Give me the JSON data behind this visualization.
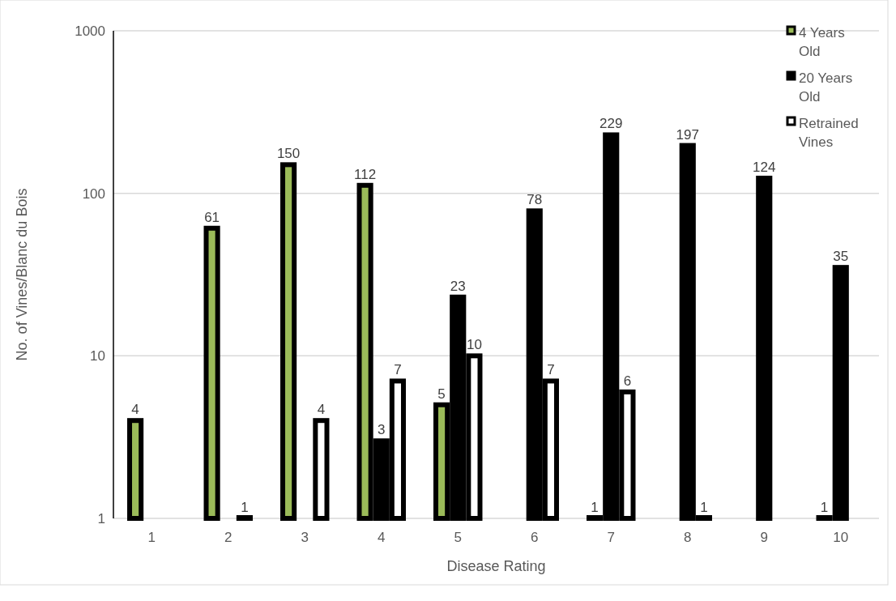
{
  "chart_data": {
    "type": "bar",
    "xlabel": "Disease Rating",
    "ylabel": "No. of Vines/Blanc du Bois",
    "categories": [
      "1",
      "2",
      "3",
      "4",
      "5",
      "6",
      "7",
      "8",
      "9",
      "10"
    ],
    "series": [
      {
        "name": "4 Years Old",
        "color": "#9bbb59",
        "values": [
          4,
          61,
          150,
          112,
          5,
          null,
          1,
          null,
          null,
          1
        ]
      },
      {
        "name": "20 Years Old",
        "color": "#000000",
        "values": [
          null,
          null,
          null,
          3,
          23,
          78,
          229,
          197,
          124,
          35
        ]
      },
      {
        "name": "Retrained Vines",
        "color": "#ffffff",
        "values": [
          null,
          1,
          4,
          7,
          10,
          7,
          6,
          1,
          null,
          null
        ]
      }
    ],
    "log": "y",
    "ylim": [
      1,
      1000
    ],
    "yticks": [
      1,
      10,
      100,
      1000
    ],
    "grid": "y",
    "legend": "top right",
    "data_labels": true
  }
}
